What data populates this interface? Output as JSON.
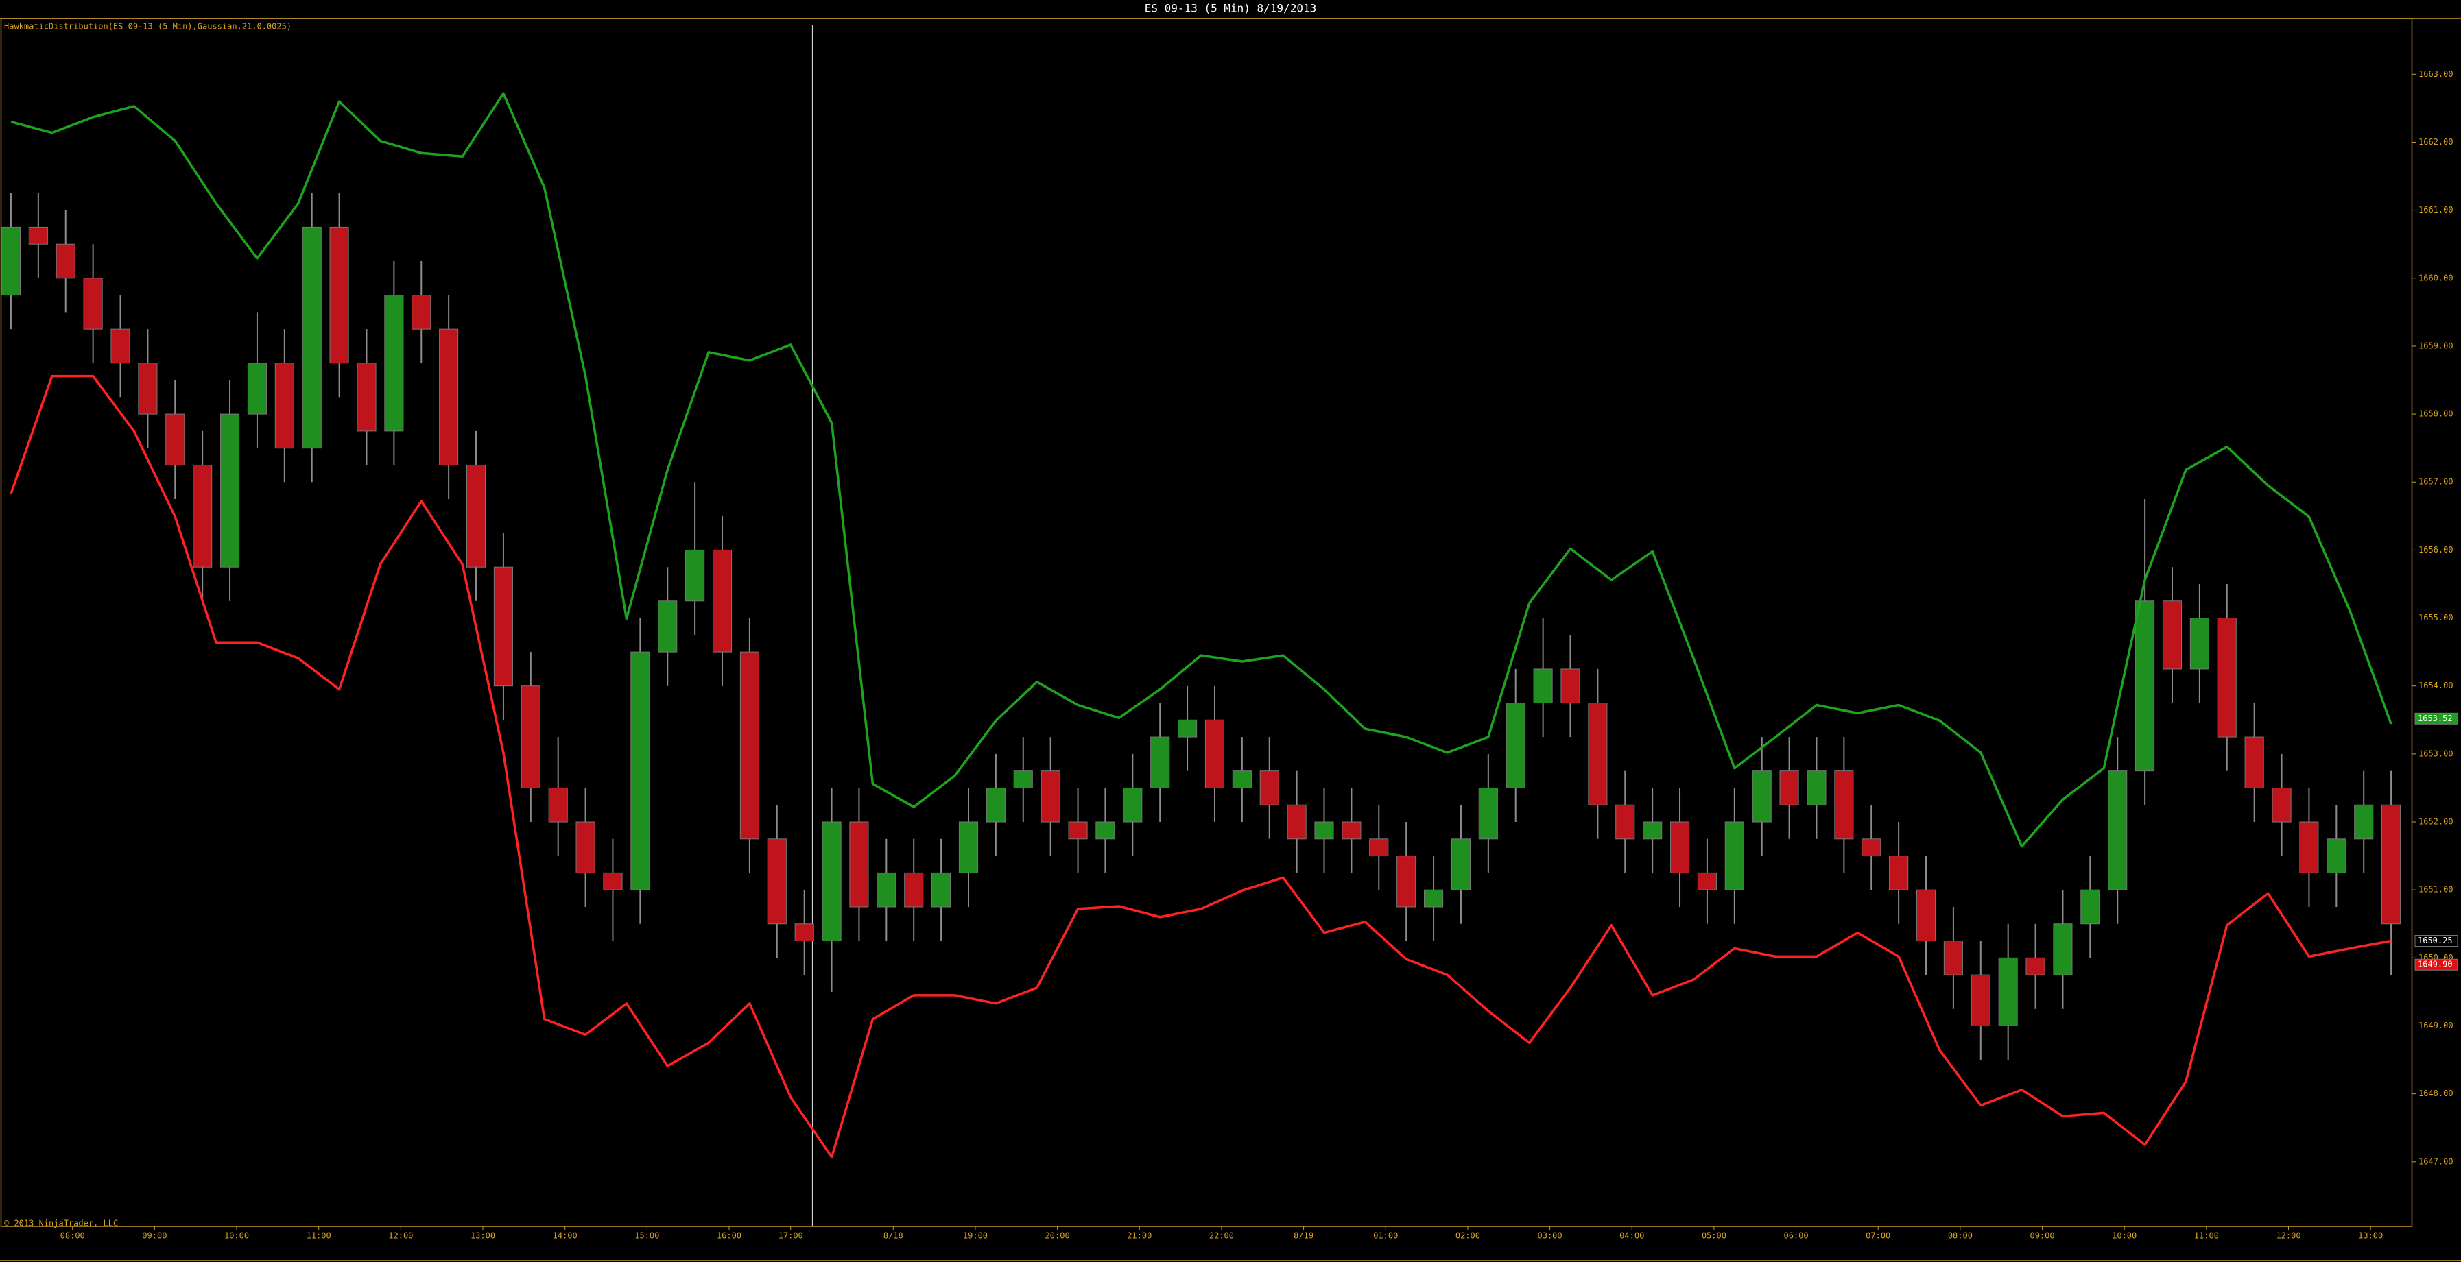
{
  "chart_data": {
    "type": "candlestick",
    "title": "ES 09-13 (5 Min)  8/19/2013",
    "indicator_label": "HawkmaticDistribution(ES 09-13 (5 Min),Gaussian,21,0.0025)",
    "copyright": "© 2013 NinjaTrader, LLC",
    "up_color": "#1f8f1f",
    "down_color": "#c0141c",
    "x": [
      0,
      4,
      8,
      12,
      16,
      20,
      24,
      28,
      32,
      36,
      40,
      44,
      48,
      52,
      56,
      60,
      64,
      68,
      72,
      76,
      80,
      84,
      88,
      92,
      96,
      100,
      104,
      108,
      112,
      116,
      120,
      124,
      128,
      132,
      136,
      140,
      144,
      148,
      152,
      156,
      160,
      164,
      168,
      172,
      176,
      180,
      184,
      188,
      192,
      196,
      200,
      204,
      208,
      212,
      216,
      220,
      224,
      228,
      232,
      236,
      240,
      244,
      248,
      252,
      256,
      260,
      264,
      268,
      272,
      276,
      280,
      284,
      288,
      292,
      296,
      300,
      304,
      308,
      312,
      316,
      320,
      324,
      328,
      332,
      336,
      340,
      344,
      348
    ],
    "open": [
      1659.75,
      1660.75,
      1660.5,
      1660,
      1659.25,
      1658.75,
      1658,
      1657.25,
      1655.75,
      1658,
      1658.75,
      1657.5,
      1660.75,
      1658.75,
      1657.75,
      1659.75,
      1659.25,
      1657.25,
      1655.75,
      1654,
      1652.5,
      1652,
      1651.25,
      1651,
      1654.5,
      1655.25,
      1656,
      1654.5,
      1651.75,
      1650.5,
      1650.25,
      1652,
      1650.75,
      1651.25,
      1650.75,
      1651.25,
      1652,
      1652.5,
      1652.75,
      1652,
      1651.75,
      1652,
      1652.5,
      1653.25,
      1653.5,
      1652.5,
      1652.75,
      1652.25,
      1651.75,
      1652,
      1651.75,
      1651.5,
      1650.75,
      1651,
      1651.75,
      1652.5,
      1653.75,
      1654.25,
      1653.75,
      1652.25,
      1651.75,
      1652,
      1651.25,
      1651,
      1652,
      1652.75,
      1652.25,
      1652.75,
      1651.75,
      1651.5,
      1651,
      1650.25,
      1649.75,
      1649,
      1650,
      1649.75,
      1650.5,
      1651,
      1652.75,
      1655.25,
      1654.25,
      1655,
      1653.25,
      1652.5,
      1652,
      1651.25,
      1651.75,
      1652.25
    ],
    "high": [
      1661.25,
      1661.25,
      1661,
      1660.5,
      1659.75,
      1659.25,
      1658.5,
      1657.75,
      1658.5,
      1659.5,
      1659.25,
      1661.25,
      1661.25,
      1659.25,
      1660.25,
      1660.25,
      1659.75,
      1657.75,
      1656.25,
      1654.5,
      1653.25,
      1652.5,
      1651.75,
      1655,
      1655.75,
      1657,
      1656.5,
      1655,
      1652.25,
      1651,
      1652.5,
      1652.5,
      1651.75,
      1651.75,
      1651.75,
      1652.5,
      1653,
      1653.25,
      1653.25,
      1652.5,
      1652.5,
      1653,
      1653.75,
      1654,
      1654,
      1653.25,
      1653.25,
      1652.75,
      1652.5,
      1652.5,
      1652.25,
      1652,
      1651.5,
      1652.25,
      1653,
      1654.25,
      1655,
      1654.75,
      1654.25,
      1652.75,
      1652.5,
      1652.5,
      1651.75,
      1652.5,
      1653.25,
      1653.25,
      1653.25,
      1653.25,
      1652.25,
      1652,
      1651.5,
      1650.75,
      1650.25,
      1650.5,
      1650.5,
      1651,
      1651.5,
      1653.25,
      1656.75,
      1655.75,
      1655.5,
      1655.5,
      1653.75,
      1653,
      1652.5,
      1652.25,
      1652.75,
      1652.75
    ],
    "low": [
      1659.25,
      1660,
      1659.5,
      1658.75,
      1658.25,
      1657.5,
      1656.75,
      1655.25,
      1655.25,
      1657.5,
      1657,
      1657,
      1658.25,
      1657.25,
      1657.25,
      1658.75,
      1656.75,
      1655.25,
      1653.5,
      1652,
      1651.5,
      1650.75,
      1650.25,
      1650.5,
      1654,
      1654.75,
      1654,
      1651.25,
      1650,
      1649.75,
      1649.5,
      1650.25,
      1650.25,
      1650.25,
      1650.25,
      1650.75,
      1651.5,
      1652,
      1651.5,
      1651.25,
      1651.25,
      1651.5,
      1652,
      1652.75,
      1652,
      1652,
      1651.75,
      1651.25,
      1651.25,
      1651.25,
      1651,
      1650.25,
      1650.25,
      1650.5,
      1651.25,
      1652,
      1653.25,
      1653.25,
      1651.75,
      1651.25,
      1651.25,
      1650.75,
      1650.5,
      1650.5,
      1651.5,
      1651.75,
      1651.75,
      1651.25,
      1651,
      1650.5,
      1649.75,
      1649.25,
      1648.5,
      1648.5,
      1649.25,
      1649.25,
      1650,
      1650.5,
      1652.25,
      1653.75,
      1653.75,
      1652.75,
      1652,
      1651.5,
      1650.75,
      1650.75,
      1651.25,
      1649.75
    ],
    "close": [
      1660.75,
      1660.5,
      1660,
      1659.25,
      1658.75,
      1658,
      1657.25,
      1655.75,
      1658,
      1658.75,
      1657.5,
      1660.75,
      1658.75,
      1657.75,
      1659.75,
      1659.25,
      1657.25,
      1655.75,
      1654,
      1652.5,
      1652,
      1651.25,
      1651,
      1654.5,
      1655.25,
      1656,
      1654.5,
      1651.75,
      1650.5,
      1650.25,
      1652,
      1650.75,
      1651.25,
      1650.75,
      1651.25,
      1652,
      1652.5,
      1652.75,
      1652,
      1651.75,
      1652,
      1652.5,
      1653.25,
      1653.5,
      1652.5,
      1652.75,
      1652.25,
      1651.75,
      1652,
      1651.75,
      1651.5,
      1650.75,
      1651,
      1651.75,
      1652.5,
      1653.75,
      1654.25,
      1653.75,
      1652.25,
      1651.75,
      1652,
      1651.25,
      1651,
      1652,
      1652.75,
      1652.25,
      1652.75,
      1651.75,
      1651.5,
      1651,
      1650.25,
      1649.75,
      1649,
      1650,
      1649.75,
      1650.5,
      1651,
      1652.75,
      1655.25,
      1654.25,
      1655,
      1653.25,
      1652.5,
      1652,
      1651.25,
      1651.75,
      1652.25,
      1650.5
    ],
    "band_x": [
      0,
      6,
      12,
      18,
      24,
      30,
      36,
      42,
      48,
      54,
      60,
      66,
      72,
      78,
      84,
      90,
      96,
      102,
      108,
      114,
      120,
      126,
      132,
      138,
      144,
      150,
      156,
      162,
      168,
      174,
      180,
      186,
      192,
      198,
      204,
      210,
      216,
      222,
      228,
      234,
      240,
      246,
      252,
      258,
      264,
      270,
      276,
      282,
      288,
      294,
      300,
      306,
      312,
      318,
      324,
      330,
      336,
      342,
      348
    ],
    "upper_band": {
      "color": "#1fa31f",
      "values": [
        1662.3,
        1662.14,
        1662.37,
        1662.53,
        1662.02,
        1661.1,
        1660.29,
        1661.1,
        1662.6,
        1662.02,
        1661.84,
        1661.79,
        1662.72,
        1661.33,
        1658.56,
        1654.99,
        1657.18,
        1658.91,
        1658.79,
        1659.02,
        1657.87,
        1652.56,
        1652.22,
        1652.68,
        1653.49,
        1654.06,
        1653.72,
        1653.53,
        1653.95,
        1654.45,
        1654.36,
        1654.45,
        1653.95,
        1653.37,
        1653.25,
        1653.02,
        1653.25,
        1655.22,
        1656.02,
        1655.56,
        1655.98,
        1654.41,
        1652.79,
        1653.25,
        1653.72,
        1653.6,
        1653.72,
        1653.49,
        1653.02,
        1651.64,
        1652.33,
        1652.79,
        1655.56,
        1657.18,
        1657.52,
        1656.95,
        1656.49,
        1655.1,
        1653.44
      ]
    },
    "lower_band": {
      "color": "#ff2222",
      "values": [
        1656.83,
        1658.56,
        1658.56,
        1657.75,
        1656.49,
        1654.64,
        1654.64,
        1654.41,
        1653.95,
        1655.79,
        1656.72,
        1655.79,
        1653.02,
        1649.1,
        1648.87,
        1649.33,
        1648.41,
        1648.75,
        1649.33,
        1647.95,
        1647.07,
        1649.1,
        1649.45,
        1649.45,
        1649.33,
        1649.56,
        1650.72,
        1650.76,
        1650.6,
        1650.72,
        1650.99,
        1651.18,
        1650.37,
        1650.53,
        1649.98,
        1649.75,
        1649.22,
        1648.75,
        1649.56,
        1650.48,
        1649.45,
        1649.68,
        1650.14,
        1650.02,
        1650.02,
        1650.37,
        1650.02,
        1648.64,
        1647.83,
        1648.06,
        1647.67,
        1647.72,
        1647.25,
        1648.18,
        1650.48,
        1650.95,
        1650.02,
        1650.14,
        1650.25
      ]
    },
    "session_break_x": 117.2,
    "xlim": [
      -1.4,
      351.1
    ],
    "xticks": [
      {
        "value": 9,
        "label": "08:00"
      },
      {
        "value": 21,
        "label": "09:00"
      },
      {
        "value": 33,
        "label": "10:00"
      },
      {
        "value": 45,
        "label": "11:00"
      },
      {
        "value": 57,
        "label": "12:00"
      },
      {
        "value": 69,
        "label": "13:00"
      },
      {
        "value": 81,
        "label": "14:00"
      },
      {
        "value": 93,
        "label": "15:00"
      },
      {
        "value": 105,
        "label": "16:00"
      },
      {
        "value": 114,
        "label": "17:00"
      },
      {
        "value": 129,
        "label": "8/18"
      },
      {
        "value": 141,
        "label": "19:00"
      },
      {
        "value": 153,
        "label": "20:00"
      },
      {
        "value": 165,
        "label": "21:00"
      },
      {
        "value": 177,
        "label": "22:00"
      },
      {
        "value": 189,
        "label": "8/19"
      },
      {
        "value": 201,
        "label": "01:00"
      },
      {
        "value": 213,
        "label": "02:00"
      },
      {
        "value": 225,
        "label": "03:00"
      },
      {
        "value": 237,
        "label": "04:00"
      },
      {
        "value": 249,
        "label": "05:00"
      },
      {
        "value": 261,
        "label": "06:00"
      },
      {
        "value": 273,
        "label": "07:00"
      },
      {
        "value": 285,
        "label": "08:00"
      },
      {
        "value": 297,
        "label": "09:00"
      },
      {
        "value": 309,
        "label": "10:00"
      },
      {
        "value": 321,
        "label": "11:00"
      },
      {
        "value": 333,
        "label": "12:00"
      },
      {
        "value": 345,
        "label": "13:00"
      }
    ],
    "ylim": [
      1646.05,
      1663.82
    ],
    "yticks": [
      {
        "value": 1647,
        "label": "1647.00"
      },
      {
        "value": 1648,
        "label": "1648.00"
      },
      {
        "value": 1649,
        "label": "1649.00"
      },
      {
        "value": 1650,
        "label": "1650.00"
      },
      {
        "value": 1651,
        "label": "1651.00"
      },
      {
        "value": 1652,
        "label": "1652.00"
      },
      {
        "value": 1653,
        "label": "1653.00"
      },
      {
        "value": 1654,
        "label": "1654.00"
      },
      {
        "value": 1655,
        "label": "1655.00"
      },
      {
        "value": 1656,
        "label": "1656.00"
      },
      {
        "value": 1657,
        "label": "1657.00"
      },
      {
        "value": 1658,
        "label": "1658.00"
      },
      {
        "value": 1659,
        "label": "1659.00"
      },
      {
        "value": 1660,
        "label": "1660.00"
      },
      {
        "value": 1661,
        "label": "1661.00"
      },
      {
        "value": 1662,
        "label": "1662.00"
      },
      {
        "value": 1663,
        "label": "1663.00"
      }
    ],
    "price_markers": [
      {
        "value": 1653.52,
        "label": "1653.52",
        "color": "#1e9e1e"
      },
      {
        "value": 1650.25,
        "label": "1650.25",
        "color": "#000000"
      },
      {
        "value": 1649.9,
        "label": "1649.90",
        "color": "#e01010"
      }
    ]
  }
}
